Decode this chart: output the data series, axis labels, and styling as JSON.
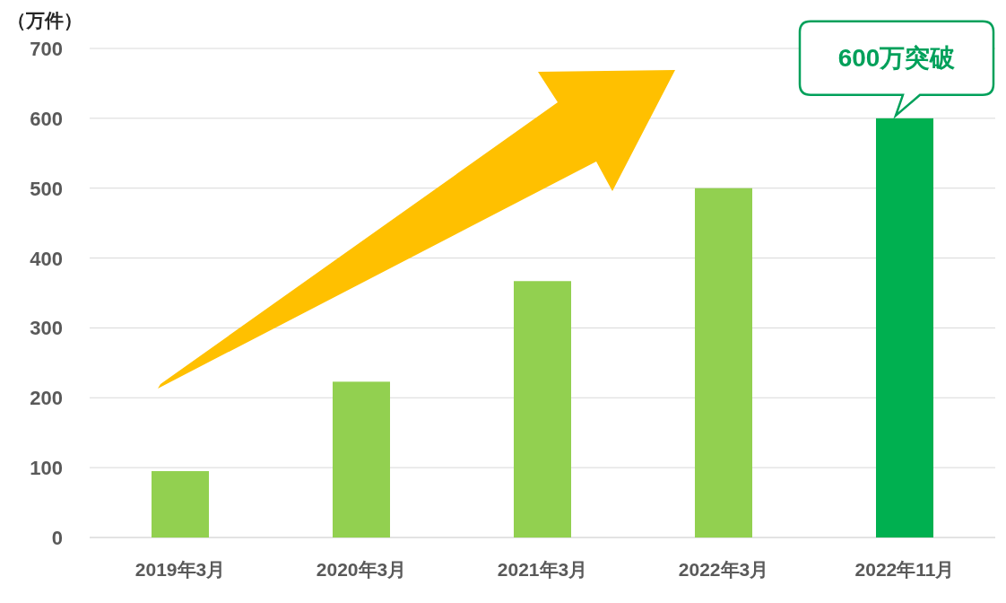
{
  "chart_data": {
    "type": "bar",
    "ylabel": "（万件）",
    "categories": [
      "2019年3月",
      "2020年3月",
      "2021年3月",
      "2022年3月",
      "2022年11月"
    ],
    "values": [
      95,
      223,
      367,
      500,
      600
    ],
    "colors": [
      "#92d050",
      "#92d050",
      "#92d050",
      "#92d050",
      "#00b050"
    ],
    "ylim": [
      0,
      700
    ],
    "yticks": [
      0,
      100,
      200,
      300,
      400,
      500,
      600,
      700
    ],
    "grid": "y",
    "annotations": [
      {
        "text": "600万突破",
        "x": "2022年11月",
        "y": 600
      }
    ]
  }
}
